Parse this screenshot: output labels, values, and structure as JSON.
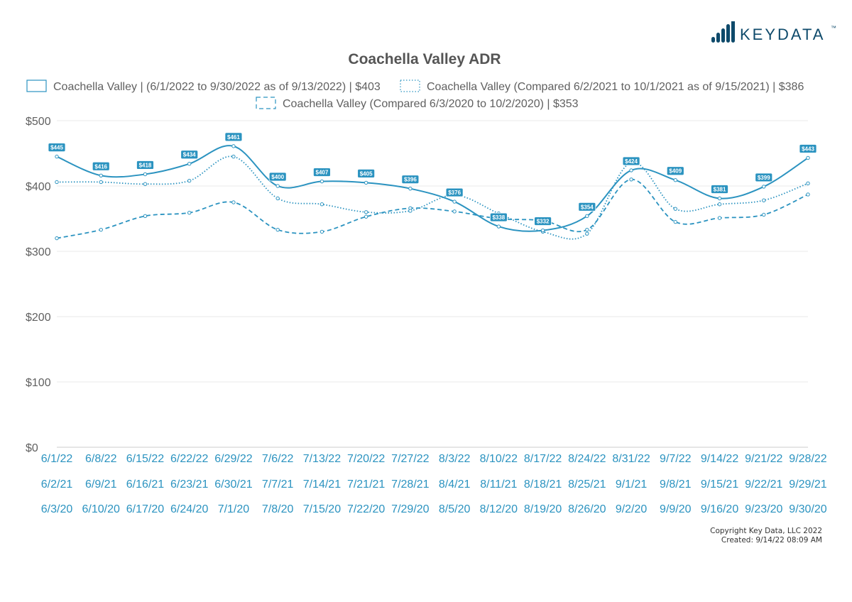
{
  "brand": {
    "name": "KEYDATA",
    "tm": "™",
    "color": "#0e4a6b"
  },
  "colors": {
    "series": "#2b93c0",
    "axis_text": "#606060",
    "label_text": "#2b93c0",
    "title": "#555555",
    "grid": "#e8e8e8",
    "badge_bg": "#2b93c0",
    "badge_text": "#ffffff"
  },
  "footer": {
    "copyright": "Copyright Key Data, LLC 2022",
    "created": "Created: 9/14/22 08:09 AM"
  },
  "chart_data": {
    "type": "line",
    "title": "Coachella Valley ADR",
    "ylim": [
      0,
      500
    ],
    "yticks": [
      {
        "value": 0,
        "label": "$0"
      },
      {
        "value": 100,
        "label": "$100"
      },
      {
        "value": 200,
        "label": "$200"
      },
      {
        "value": 300,
        "label": "$300"
      },
      {
        "value": 400,
        "label": "$400"
      },
      {
        "value": 500,
        "label": "$500"
      }
    ],
    "x_label_rows": [
      [
        "6/1/22",
        "6/8/22",
        "6/15/22",
        "6/22/22",
        "6/29/22",
        "7/6/22",
        "7/13/22",
        "7/20/22",
        "7/27/22",
        "8/3/22",
        "8/10/22",
        "8/17/22",
        "8/24/22",
        "8/31/22",
        "9/7/22",
        "9/14/22",
        "9/21/22",
        "9/28/22"
      ],
      [
        "6/2/21",
        "6/9/21",
        "6/16/21",
        "6/23/21",
        "6/30/21",
        "7/7/21",
        "7/14/21",
        "7/21/21",
        "7/28/21",
        "8/4/21",
        "8/11/21",
        "8/18/21",
        "8/25/21",
        "9/1/21",
        "9/8/21",
        "9/15/21",
        "9/22/21",
        "9/29/21"
      ],
      [
        "6/3/20",
        "6/10/20",
        "6/17/20",
        "6/24/20",
        "7/1/20",
        "7/8/20",
        "7/15/20",
        "7/22/20",
        "7/29/20",
        "8/5/20",
        "8/12/20",
        "8/19/20",
        "8/26/20",
        "9/2/20",
        "9/9/20",
        "9/16/20",
        "9/23/20",
        "9/30/20"
      ]
    ],
    "series": [
      {
        "name": "Coachella Valley | (6/1/2022 to 9/30/2022 as of 9/13/2022) | $403",
        "style": "solid",
        "values": [
          445,
          416,
          418,
          434,
          461,
          400,
          407,
          405,
          396,
          376,
          338,
          332,
          354,
          424,
          409,
          381,
          399,
          443
        ],
        "labels": [
          "$445",
          "$416",
          "$418",
          "$434",
          "$461",
          "$400",
          "$407",
          "$405",
          "$396",
          "$376",
          "$338",
          "$332",
          "$354",
          "$424",
          "$409",
          "$381",
          "$399",
          "$443"
        ]
      },
      {
        "name": "Coachella Valley (Compared 6/2/2021 to 10/1/2021 as of 9/15/2021) | $386",
        "style": "dotted",
        "values": [
          406,
          406,
          403,
          408,
          445,
          381,
          372,
          360,
          362,
          386,
          358,
          330,
          327,
          436,
          365,
          372,
          378,
          404
        ]
      },
      {
        "name": "Coachella Valley (Compared 6/3/2020 to 10/2/2020) | $353",
        "style": "dashed",
        "values": [
          320,
          333,
          354,
          359,
          375,
          333,
          330,
          353,
          366,
          361,
          350,
          347,
          333,
          410,
          345,
          351,
          356,
          387
        ]
      }
    ]
  }
}
